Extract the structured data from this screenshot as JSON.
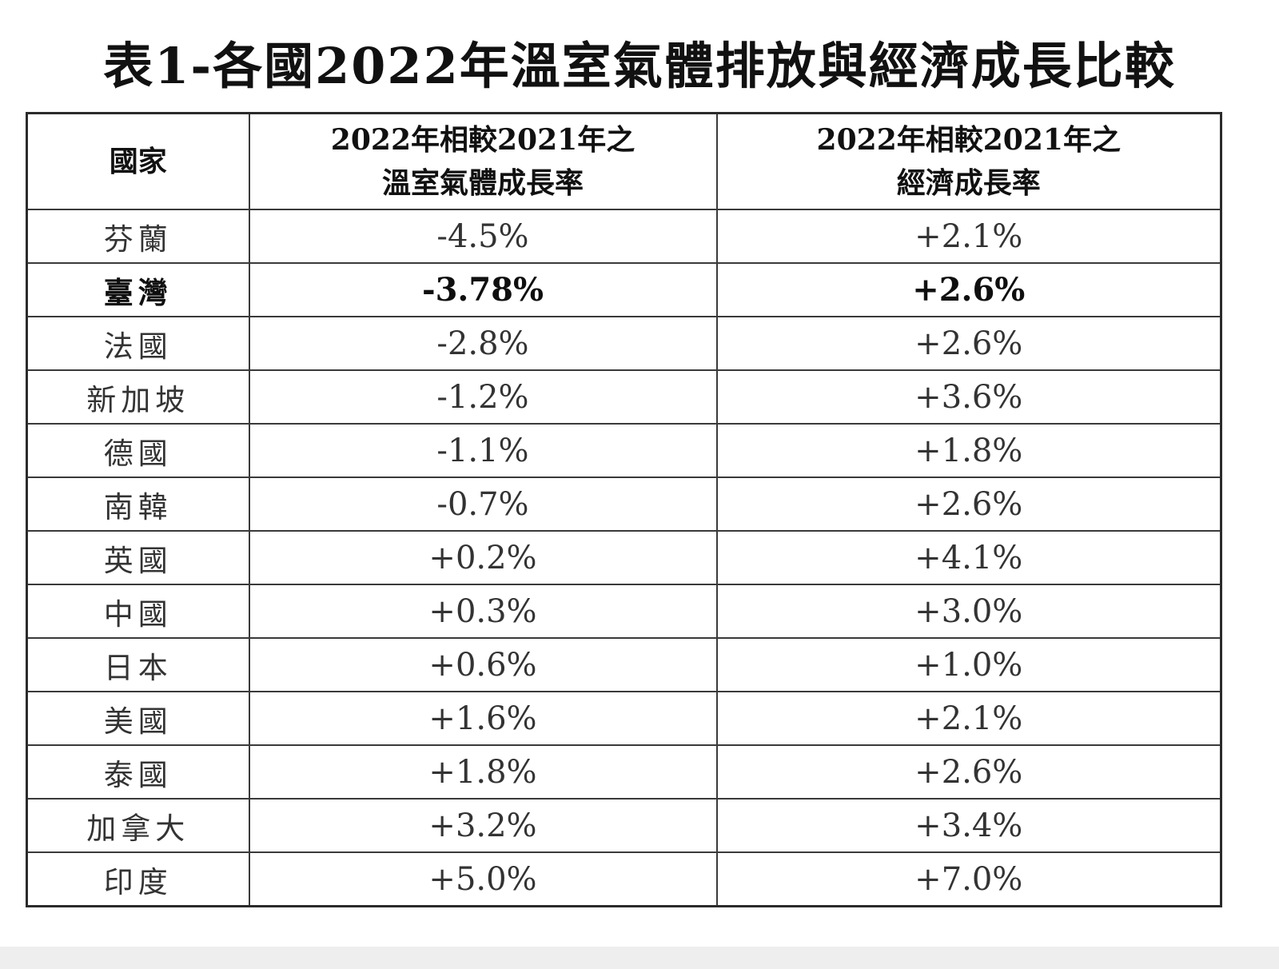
{
  "title": "表1-各國2022年溫室氣體排放與經濟成長比較",
  "table": {
    "headers": {
      "country": "國家",
      "ghg": [
        "2022年相較2021年之",
        "溫室氣體成長率"
      ],
      "econ": [
        "2022年相較2021年之",
        "經濟成長率"
      ]
    },
    "rows": [
      {
        "country": "芬蘭",
        "ghg": "-4.5%",
        "econ": "+2.1%",
        "highlight": false
      },
      {
        "country": "臺灣",
        "ghg": "-3.78%",
        "econ": "+2.6%",
        "highlight": true
      },
      {
        "country": "法國",
        "ghg": "-2.8%",
        "econ": "+2.6%",
        "highlight": false
      },
      {
        "country": "新加坡",
        "ghg": "-1.2%",
        "econ": "+3.6%",
        "highlight": false
      },
      {
        "country": "德國",
        "ghg": "-1.1%",
        "econ": "+1.8%",
        "highlight": false
      },
      {
        "country": "南韓",
        "ghg": "-0.7%",
        "econ": "+2.6%",
        "highlight": false
      },
      {
        "country": "英國",
        "ghg": "+0.2%",
        "econ": "+4.1%",
        "highlight": false
      },
      {
        "country": "中國",
        "ghg": "+0.3%",
        "econ": "+3.0%",
        "highlight": false
      },
      {
        "country": "日本",
        "ghg": "+0.6%",
        "econ": "+1.0%",
        "highlight": false
      },
      {
        "country": "美國",
        "ghg": "+1.6%",
        "econ": "+2.1%",
        "highlight": false
      },
      {
        "country": "泰國",
        "ghg": "+1.8%",
        "econ": "+2.6%",
        "highlight": false
      },
      {
        "country": "加拿大",
        "ghg": "+3.2%",
        "econ": "+3.4%",
        "highlight": false
      },
      {
        "country": "印度",
        "ghg": "+5.0%",
        "econ": "+7.0%",
        "highlight": false
      }
    ]
  }
}
